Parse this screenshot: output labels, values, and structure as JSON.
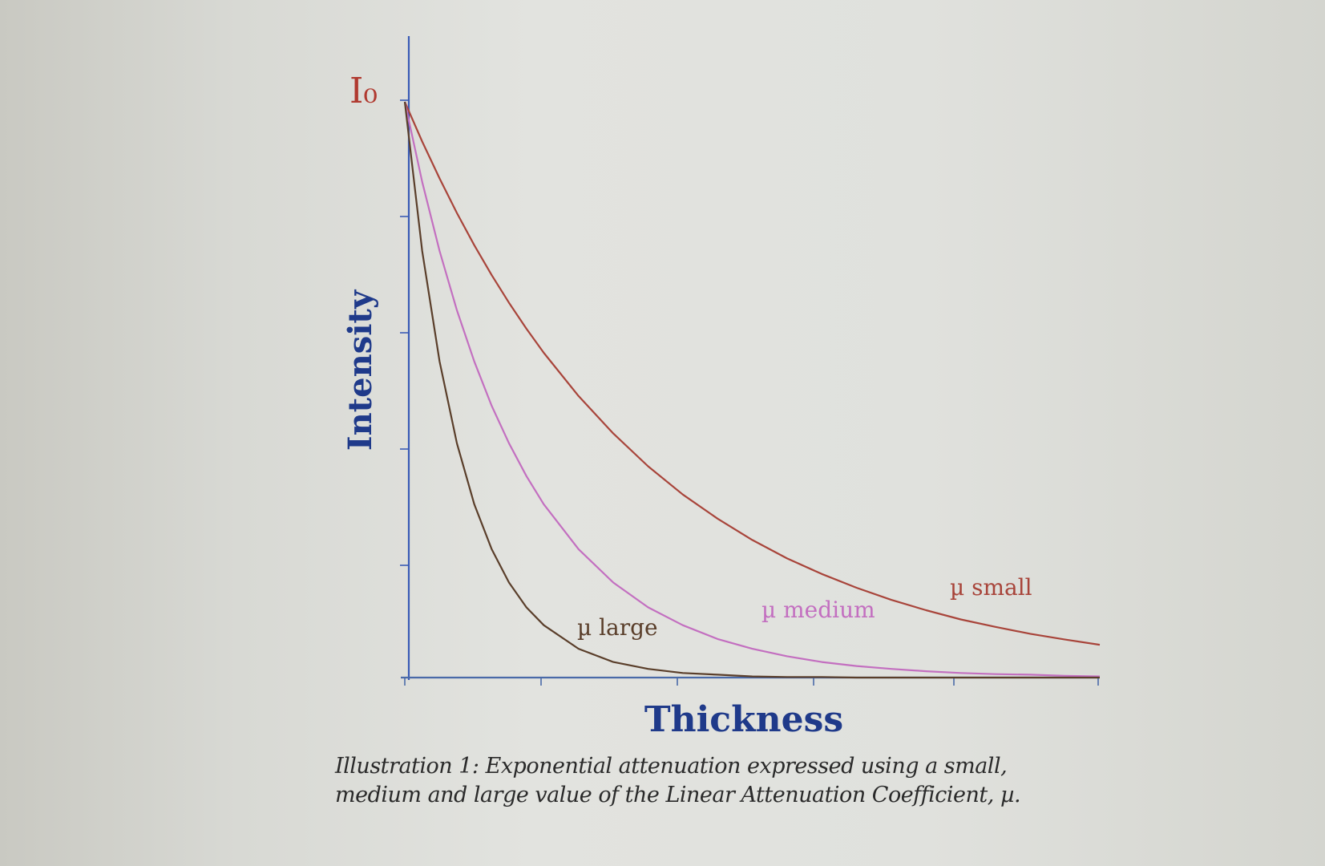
{
  "chart_data": {
    "type": "line",
    "xlabel": "Thickness",
    "ylabel": "Intensity",
    "y_max_label": "I₀",
    "ylim": [
      0,
      1
    ],
    "xlim": [
      0,
      1
    ],
    "grid": false,
    "legend": "inline labels near curve tails",
    "x": [
      0,
      0.025,
      0.05,
      0.075,
      0.1,
      0.125,
      0.15,
      0.175,
      0.2,
      0.25,
      0.3,
      0.35,
      0.4,
      0.45,
      0.5,
      0.55,
      0.6,
      0.65,
      0.7,
      0.75,
      0.8,
      0.85,
      0.9,
      0.95,
      1.0
    ],
    "series": [
      {
        "name": "µ small",
        "color": "#a8443a",
        "values": [
          1.0,
          0.931,
          0.867,
          0.807,
          0.751,
          0.699,
          0.651,
          0.606,
          0.564,
          0.489,
          0.424,
          0.367,
          0.318,
          0.276,
          0.239,
          0.207,
          0.18,
          0.156,
          0.135,
          0.117,
          0.101,
          0.088,
          0.076,
          0.066,
          0.057
        ]
      },
      {
        "name": "µ medium",
        "color": "#c36fc0",
        "values": [
          1.0,
          0.861,
          0.741,
          0.638,
          0.549,
          0.472,
          0.407,
          0.35,
          0.301,
          0.223,
          0.165,
          0.122,
          0.091,
          0.067,
          0.05,
          0.037,
          0.027,
          0.02,
          0.015,
          0.011,
          0.008,
          0.006,
          0.005,
          0.003,
          0.002
        ]
      },
      {
        "name": "µ large",
        "color": "#5a3e2a",
        "values": [
          1.0,
          0.741,
          0.549,
          0.407,
          0.301,
          0.223,
          0.165,
          0.122,
          0.091,
          0.05,
          0.027,
          0.015,
          0.008,
          0.005,
          0.002,
          0.001,
          0.001,
          0.0,
          0.0,
          0.0,
          0.0,
          0.0,
          0.0,
          0.0,
          0.0
        ]
      }
    ],
    "colors": {
      "axis": "#3a5bb5",
      "axis_title": "#1f3a8a",
      "y_max_label": "#b03a30"
    }
  },
  "caption": {
    "line1": "Illustration 1: Exponential attenuation expressed using a small,",
    "line2": "medium and large value of the Linear Attenuation Coefficient, µ."
  }
}
